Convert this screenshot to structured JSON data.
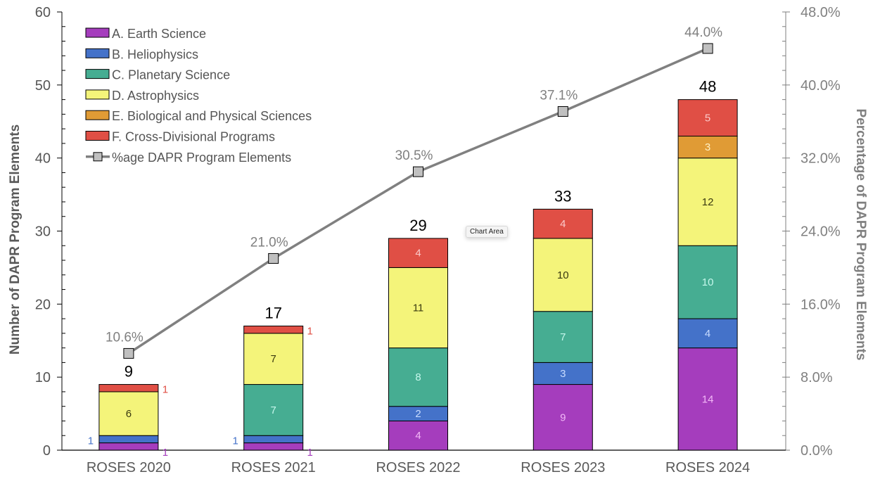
{
  "chart_data": {
    "type": "bar",
    "stacked": true,
    "title": "",
    "categories": [
      "ROSES 2020",
      "ROSES 2021",
      "ROSES 2022",
      "ROSES 2023",
      "ROSES 2024"
    ],
    "series": [
      {
        "name": "A. Earth Science",
        "color": "#a53dbd",
        "label_color": "#f3b8f7",
        "values": [
          1,
          1,
          4,
          9,
          14
        ]
      },
      {
        "name": "B. Heliophysics",
        "color": "#4472c9",
        "label_color": "#c8dcff",
        "values": [
          1,
          1,
          2,
          3,
          4
        ]
      },
      {
        "name": "C. Planetary Science",
        "color": "#46ad92",
        "label_color": "#c6f7ec",
        "values": [
          0,
          7,
          8,
          7,
          10
        ]
      },
      {
        "name": "D. Astrophysics",
        "color": "#f4f47a",
        "label_color": "#3a3a10",
        "values": [
          6,
          7,
          11,
          10,
          12
        ]
      },
      {
        "name": "E. Biological and Physical Sciences",
        "color": "#e09b35",
        "label_color": "#fff1c6",
        "values": [
          0,
          0,
          0,
          0,
          3
        ]
      },
      {
        "name": "F. Cross-Divisional Programs",
        "color": "#e04f45",
        "label_color": "#fbcaca",
        "values": [
          1,
          1,
          4,
          4,
          5
        ]
      }
    ],
    "totals": [
      9,
      17,
      29,
      33,
      48
    ],
    "line_series": {
      "name": "%age DAPR Program Elements",
      "axis": "right",
      "color": "#808080",
      "marker_color": "#c0c0c0",
      "values": [
        10.6,
        21.0,
        30.5,
        37.1,
        44.0
      ],
      "labels": [
        "10.6%",
        "21.0%",
        "30.5%",
        "37.1%",
        "44.0%"
      ]
    },
    "outside_labels": {
      "note": "small values in first two bars labeled beside the bar",
      "categories": [
        0,
        1
      ]
    },
    "ylabel": "Number of DAPR Program Elements",
    "ylim": [
      0,
      60
    ],
    "yticks": [
      0,
      10,
      20,
      30,
      40,
      50,
      60
    ],
    "ytick_labels": [
      "0",
      "10",
      "20",
      "30",
      "40",
      "50",
      "60"
    ],
    "y2label": "Percentage of DAPR Program Elements",
    "y2lim": [
      0,
      48
    ],
    "y2ticks": [
      0,
      8,
      16,
      24,
      32,
      40,
      48
    ],
    "y2tick_labels": [
      "0.0%",
      "8.0%",
      "16.0%",
      "24.0%",
      "32.0%",
      "40.0%",
      "48.0%"
    ],
    "minor_ticks_per_interval": 5,
    "xlabel": "",
    "grid": false,
    "legend": {
      "position": "top-left",
      "entries": [
        "A. Earth Science",
        "B. Heliophysics",
        "C. Planetary Science",
        "D. Astrophysics",
        "E. Biological and Physical Sciences",
        "F. Cross-Divisional Programs",
        "%age DAPR Program Elements"
      ]
    }
  },
  "tooltip": {
    "text": "Chart Area"
  }
}
